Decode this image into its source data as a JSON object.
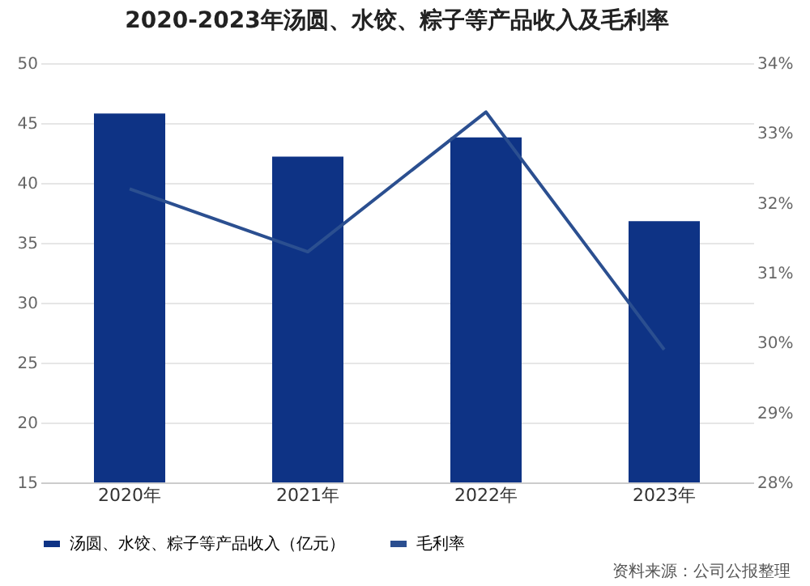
{
  "chart_data": {
    "type": "bar",
    "title": "2020-2023年汤圆、水饺、粽子等产品收入及毛利率",
    "categories": [
      "2020年",
      "2021年",
      "2022年",
      "2023年"
    ],
    "series": [
      {
        "name": "汤圆、水饺、粽子等产品收入（亿元）",
        "color": "#0e3385",
        "values": [
          45.8,
          42.2,
          43.8,
          36.8
        ]
      },
      {
        "name": "毛利率",
        "type": "line",
        "axis": "y2",
        "color": "#2b4f90",
        "values": [
          32.2,
          31.3,
          33.3,
          29.9
        ]
      }
    ],
    "ylim": [
      15,
      50
    ],
    "yticks": [
      15,
      20,
      25,
      30,
      35,
      40,
      45,
      50
    ],
    "y2lim": [
      28,
      34
    ],
    "y2ticks": [
      {
        "value": 28,
        "label": "28%"
      },
      {
        "value": 29,
        "label": "29%"
      },
      {
        "value": 30,
        "label": "30%"
      },
      {
        "value": 31,
        "label": "31%"
      },
      {
        "value": 32,
        "label": "32%"
      },
      {
        "value": 33,
        "label": "33%"
      },
      {
        "value": 34,
        "label": "34%"
      }
    ],
    "grid": "y",
    "legend": "bottom",
    "marker": "none",
    "annotations": [
      "资料来源：公司公报整理"
    ]
  }
}
